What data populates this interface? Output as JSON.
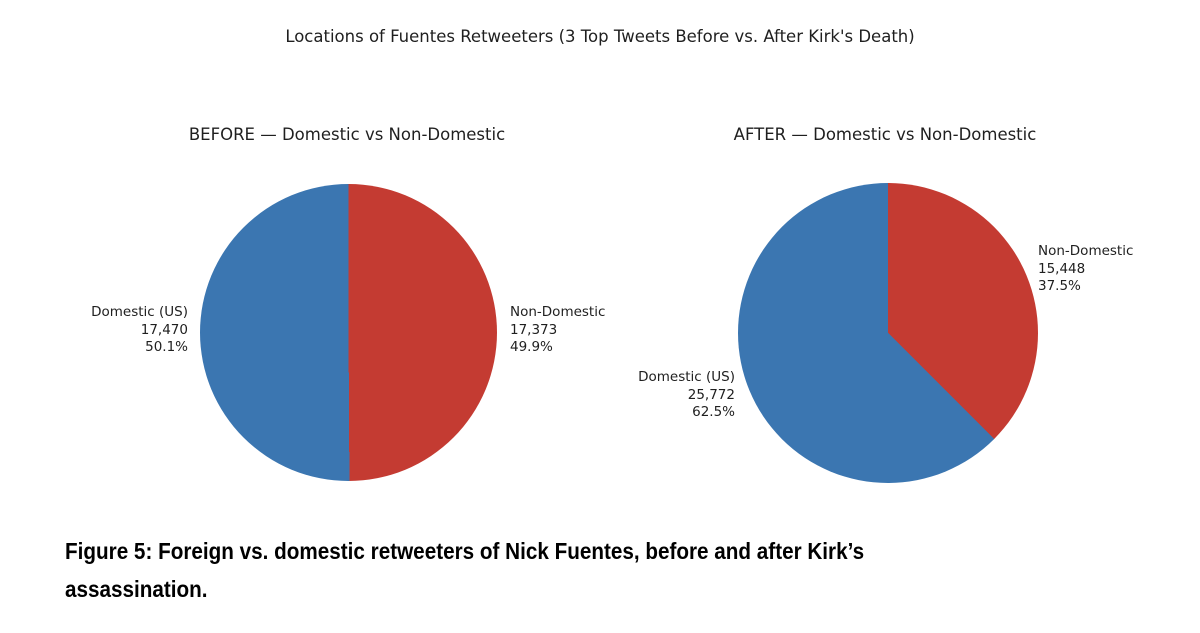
{
  "figure": {
    "title": "Locations of Fuentes Retweeters (3 Top Tweets Before vs. After Kirk's Death)",
    "caption_line1": "Figure 5: Foreign vs. domestic retweeters of Nick Fuentes, before and after Kirk’s",
    "caption_line2": "assassination.",
    "background": "#ffffff"
  },
  "colors": {
    "domestic_blue": "#3b76b1",
    "non_domestic_red": "#c43b32",
    "chart_text": "#1f1f1f",
    "caption_text": "#000000"
  },
  "chart_data": [
    {
      "type": "pie",
      "panel": "before",
      "title": "BEFORE — Domestic vs Non-Domestic",
      "start_angle": 90,
      "direction": "counterclockwise",
      "legend": "none",
      "slices": [
        {
          "label": "Domestic (US)",
          "value": 17470,
          "value_text": "17,470",
          "pct": 50.1,
          "pct_text": "50.1%",
          "color": "#3b76b1",
          "label_side": "left"
        },
        {
          "label": "Non-Domestic",
          "value": 17373,
          "value_text": "17,373",
          "pct": 49.9,
          "pct_text": "49.9%",
          "color": "#c43b32",
          "label_side": "right"
        }
      ]
    },
    {
      "type": "pie",
      "panel": "after",
      "title": "AFTER — Domestic vs Non-Domestic",
      "start_angle": 90,
      "direction": "counterclockwise",
      "legend": "none",
      "slices": [
        {
          "label": "Domestic (US)",
          "value": 25772,
          "value_text": "25,772",
          "pct": 62.5,
          "pct_text": "62.5%",
          "color": "#3b76b1",
          "label_side": "left"
        },
        {
          "label": "Non-Domestic",
          "value": 15448,
          "value_text": "15,448",
          "pct": 37.5,
          "pct_text": "37.5%",
          "color": "#c43b32",
          "label_side": "right"
        }
      ]
    }
  ]
}
